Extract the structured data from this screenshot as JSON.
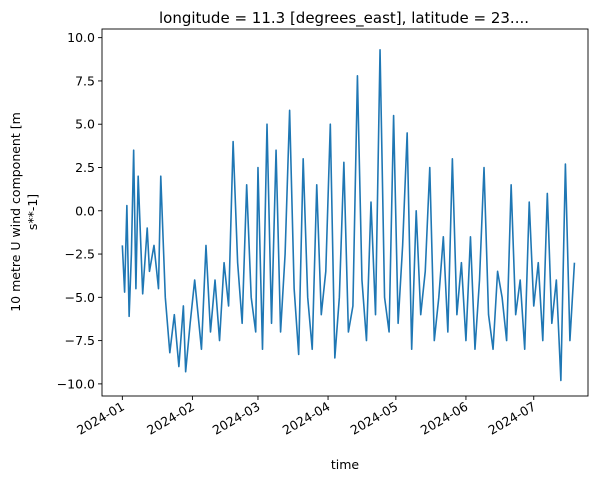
{
  "chart_data": {
    "type": "line",
    "title": "longitude = 11.3 [degrees_east], latitude = 23....",
    "xlabel": "time",
    "ylabel_line1": "10 metre U wind component [m",
    "ylabel_line2": "s**-1]",
    "x_ticks": [
      "2024-01",
      "2024-02",
      "2024-03",
      "2024-04",
      "2024-05",
      "2024-06",
      "2024-07"
    ],
    "y_ticks": [
      "10.0",
      "7.5",
      "5.0",
      "2.5",
      "0.0",
      "−2.5",
      "−5.0",
      "−7.5",
      "−10.0"
    ],
    "y_tick_values": [
      10.0,
      7.5,
      5.0,
      2.5,
      0.0,
      -2.5,
      -5.0,
      -7.5,
      -10.0
    ],
    "xlim": [
      "2023-12-23",
      "2024-07-25"
    ],
    "ylim": [
      -10.7,
      10.5
    ],
    "grid": false,
    "series_color": "#1f77b4",
    "series": [
      {
        "x": [
          "2024-01-01",
          "2024-01-02",
          "2024-01-03",
          "2024-01-04",
          "2024-01-05",
          "2024-01-06",
          "2024-01-07",
          "2024-01-08",
          "2024-01-10",
          "2024-01-12",
          "2024-01-13",
          "2024-01-15",
          "2024-01-17",
          "2024-01-18",
          "2024-01-20",
          "2024-01-22",
          "2024-01-24",
          "2024-01-26",
          "2024-01-28",
          "2024-01-29",
          "2024-01-31",
          "2024-02-02",
          "2024-02-05",
          "2024-02-07",
          "2024-02-09",
          "2024-02-11",
          "2024-02-13",
          "2024-02-15",
          "2024-02-17",
          "2024-02-19",
          "2024-02-21",
          "2024-02-23",
          "2024-02-25",
          "2024-02-27",
          "2024-02-29",
          "2024-03-01",
          "2024-03-03",
          "2024-03-05",
          "2024-03-07",
          "2024-03-09",
          "2024-03-11",
          "2024-03-13",
          "2024-03-15",
          "2024-03-17",
          "2024-03-19",
          "2024-03-21",
          "2024-03-23",
          "2024-03-25",
          "2024-03-27",
          "2024-03-29",
          "2024-03-31",
          "2024-04-02",
          "2024-04-04",
          "2024-04-06",
          "2024-04-08",
          "2024-04-10",
          "2024-04-12",
          "2024-04-14",
          "2024-04-16",
          "2024-04-18",
          "2024-04-20",
          "2024-04-22",
          "2024-04-24",
          "2024-04-26",
          "2024-04-28",
          "2024-04-30",
          "2024-05-02",
          "2024-05-04",
          "2024-05-06",
          "2024-05-08",
          "2024-05-10",
          "2024-05-12",
          "2024-05-14",
          "2024-05-16",
          "2024-05-18",
          "2024-05-20",
          "2024-05-22",
          "2024-05-24",
          "2024-05-26",
          "2024-05-28",
          "2024-05-30",
          "2024-06-01",
          "2024-06-03",
          "2024-06-05",
          "2024-06-07",
          "2024-06-09",
          "2024-06-11",
          "2024-06-13",
          "2024-06-15",
          "2024-06-17",
          "2024-06-19",
          "2024-06-21",
          "2024-06-23",
          "2024-06-25",
          "2024-06-27",
          "2024-06-29",
          "2024-07-01",
          "2024-07-03",
          "2024-07-05",
          "2024-07-07",
          "2024-07-09",
          "2024-07-11",
          "2024-07-13",
          "2024-07-15",
          "2024-07-17",
          "2024-07-19"
        ],
        "y": [
          -2.0,
          -4.7,
          0.3,
          -6.1,
          -2.5,
          3.5,
          -4.5,
          2.0,
          -4.8,
          -1.0,
          -3.5,
          -2.0,
          -4.5,
          2.0,
          -5.0,
          -8.2,
          -6.0,
          -9.0,
          -5.5,
          -9.3,
          -6.5,
          -4.0,
          -8.0,
          -2.0,
          -7.0,
          -4.0,
          -7.5,
          -3.0,
          -5.5,
          4.0,
          -3.0,
          -6.5,
          1.5,
          -5.0,
          -7.0,
          2.5,
          -8.0,
          5.0,
          -6.5,
          3.5,
          -7.0,
          -2.5,
          5.8,
          -4.5,
          -8.3,
          3.0,
          -5.0,
          -8.0,
          1.5,
          -6.0,
          -3.5,
          5.0,
          -8.5,
          -5.0,
          2.8,
          -7.0,
          -5.5,
          7.8,
          -4.0,
          -7.5,
          0.5,
          -6.0,
          9.3,
          -5.0,
          -7.0,
          5.5,
          -6.5,
          -2.0,
          4.5,
          -8.0,
          0.0,
          -6.0,
          -3.5,
          2.5,
          -7.5,
          -5.0,
          -1.5,
          -7.0,
          3.0,
          -6.0,
          -3.0,
          -7.5,
          -1.5,
          -8.0,
          -4.0,
          2.5,
          -6.0,
          -8.0,
          -3.5,
          -5.0,
          -7.5,
          1.5,
          -6.0,
          -4.0,
          -8.0,
          0.5,
          -5.5,
          -3.0,
          -7.5,
          1.0,
          -6.5,
          -4.0,
          -9.8,
          2.7,
          -7.5,
          -3.0
        ]
      }
    ]
  }
}
